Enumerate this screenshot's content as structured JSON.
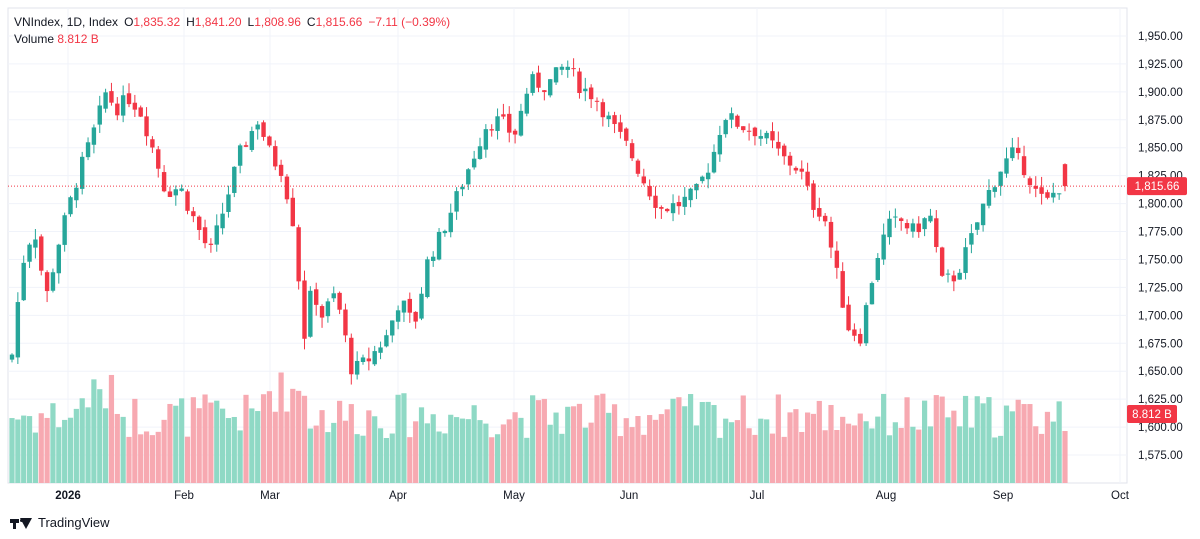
{
  "legend": {
    "symbol": "VNIndex, 1D, Index",
    "open_label": "O",
    "open": "1,835.32",
    "high_label": "H",
    "high": "1,841.20",
    "low_label": "L",
    "low": "1,808.96",
    "close_label": "C",
    "close": "1,815.66",
    "change": "−7.11 (−0.39%)",
    "volume_label": "Volume",
    "volume": "8.812 B"
  },
  "footer": {
    "brand": "TradingView",
    "logo_icon": "tradingview-logo-icon"
  },
  "colors": {
    "up": "#26a69a",
    "down": "#f23645",
    "up_volume": "#8fd9c5",
    "down_volume": "#f7a9b1",
    "grid": "#f0f3fa"
  },
  "chart_data": {
    "type": "candlestick",
    "price_axis": {
      "min": 1550,
      "max": 1960,
      "ticks": [
        "1,950.00",
        "1,925.00",
        "1,900.00",
        "1,875.00",
        "1,850.00",
        "1,825.00",
        "1,800.00",
        "1,775.00",
        "1,750.00",
        "1,725.00",
        "1,700.00",
        "1,675.00",
        "1,650.00",
        "1,625.00",
        "1,600.00",
        "1,575.00"
      ]
    },
    "time_axis": {
      "labels": [
        "2026",
        "Feb",
        "Mar",
        "Apr",
        "May",
        "Jun",
        "Jul",
        "Aug",
        "Sep",
        "Oct"
      ]
    },
    "last_price_label": "1,815.66",
    "last_volume_label": "8.812 B",
    "grid": true
  }
}
